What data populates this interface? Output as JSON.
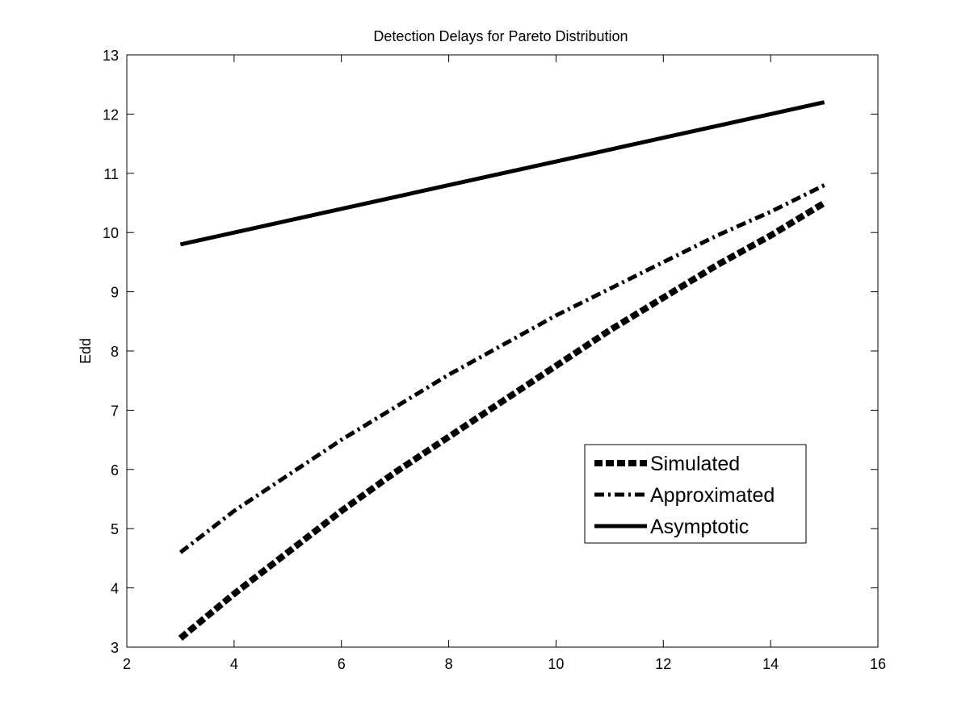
{
  "chart_data": {
    "type": "line",
    "title": "Detection Delays for Pareto Distribution",
    "xlabel": "",
    "ylabel": "Edd",
    "xlim": [
      2,
      16
    ],
    "ylim": [
      3,
      13
    ],
    "xticks": [
      2,
      4,
      6,
      8,
      10,
      12,
      14,
      16
    ],
    "yticks": [
      3,
      4,
      5,
      6,
      7,
      8,
      9,
      10,
      11,
      12,
      13
    ],
    "grid": false,
    "legend_position": "lower-right",
    "series": [
      {
        "name": "Simulated",
        "style": "dashed",
        "color": "#000000",
        "x": [
          3,
          4,
          5,
          6,
          7,
          8,
          9,
          10,
          11,
          12,
          13,
          14,
          15
        ],
        "y": [
          3.15,
          3.9,
          4.6,
          5.3,
          5.95,
          6.55,
          7.15,
          7.75,
          8.35,
          8.9,
          9.45,
          9.95,
          10.5
        ]
      },
      {
        "name": "Approximated",
        "style": "dashdot",
        "color": "#000000",
        "x": [
          3,
          4,
          5,
          6,
          7,
          8,
          9,
          10,
          11,
          12,
          13,
          14,
          15
        ],
        "y": [
          4.6,
          5.3,
          5.9,
          6.5,
          7.05,
          7.6,
          8.1,
          8.6,
          9.05,
          9.5,
          9.95,
          10.35,
          10.8
        ]
      },
      {
        "name": "Asymptotic",
        "style": "solid",
        "color": "#000000",
        "x": [
          3,
          15
        ],
        "y": [
          9.8,
          12.2
        ]
      }
    ]
  }
}
